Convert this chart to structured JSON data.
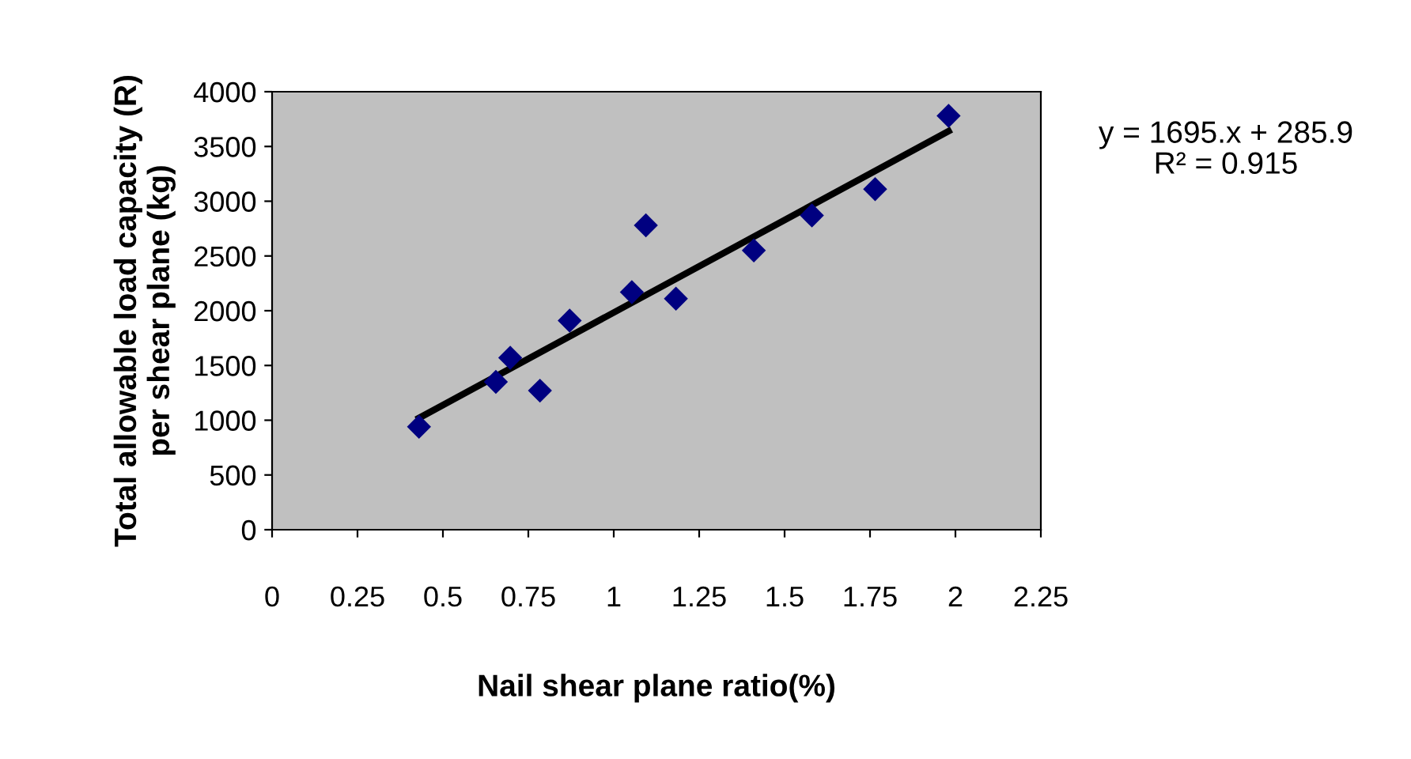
{
  "chart_data": {
    "type": "scatter",
    "xlabel": "Nail shear plane ratio(%)",
    "ylabel": "Total allowable load capacity (R)\nper shear plane (kg)",
    "xlim": [
      0,
      2.25
    ],
    "xticks": [
      0,
      0.25,
      0.5,
      0.75,
      1,
      1.25,
      1.5,
      1.75,
      2,
      2.25
    ],
    "ylim": [
      0,
      4000
    ],
    "yticks": [
      0,
      500,
      1000,
      1500,
      2000,
      2500,
      3000,
      3500,
      4000
    ],
    "grid": false,
    "marker": "diamond",
    "series": [
      {
        "color": "#000080",
        "x": [
          0.43,
          0.655,
          0.697,
          0.784,
          0.871,
          1.053,
          1.094,
          1.182,
          1.41,
          1.58,
          1.765,
          1.98
        ],
        "values": [
          940,
          1350,
          1570,
          1270,
          1910,
          2170,
          2780,
          2110,
          2550,
          2870,
          3110,
          3780
        ]
      },
      {
        "type": "line",
        "color": "#000000",
        "marker": "none",
        "x": [
          0.43,
          1.98
        ],
        "values": [
          1020,
          3640
        ]
      }
    ],
    "annotations": [
      "y = 1695.x + 285.9\nR² = 0.915"
    ]
  }
}
